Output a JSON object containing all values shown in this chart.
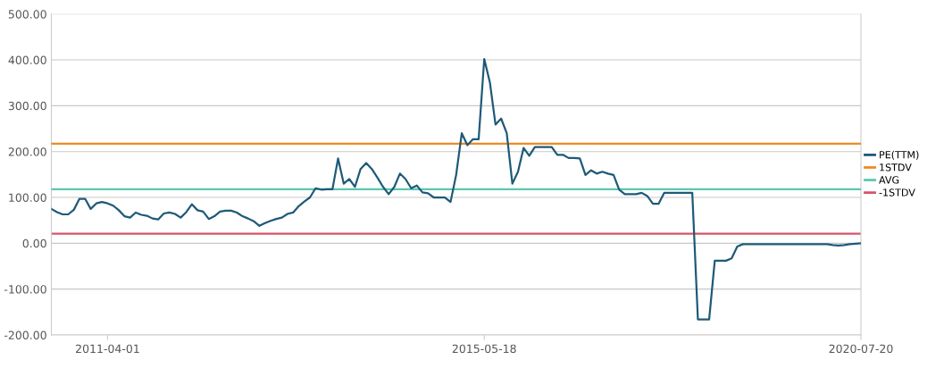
{
  "chart_data": {
    "type": "line",
    "categories": [
      null,
      null,
      null,
      null,
      null,
      null,
      null,
      null,
      null,
      null,
      "2011-04-01",
      null,
      null,
      null,
      null,
      null,
      null,
      null,
      null,
      null,
      null,
      null,
      null,
      null,
      null,
      null,
      null,
      null,
      null,
      null,
      null,
      null,
      null,
      null,
      null,
      null,
      null,
      null,
      null,
      null,
      null,
      null,
      null,
      null,
      null,
      null,
      null,
      null,
      null,
      null,
      null,
      null,
      null,
      null,
      null,
      null,
      null,
      null,
      null,
      null,
      null,
      null,
      null,
      null,
      null,
      null,
      null,
      null,
      null,
      null,
      null,
      null,
      null,
      null,
      null,
      null,
      null,
      "2015-05-18",
      null,
      null,
      null,
      null,
      null,
      null,
      null,
      null,
      null,
      null,
      null,
      null,
      null,
      null,
      null,
      null,
      null,
      null,
      null,
      null,
      null,
      null,
      null,
      null,
      null,
      null,
      null,
      null,
      null,
      null,
      null,
      null,
      null,
      null,
      null,
      null,
      null,
      null,
      null,
      null,
      null,
      null,
      null,
      null,
      null,
      null,
      null,
      null,
      null,
      null,
      null,
      null,
      null,
      null,
      null,
      null,
      null,
      null,
      null,
      null,
      null,
      null,
      null,
      null,
      null,
      null,
      "2020-07-20"
    ],
    "series": [
      {
        "name": "PE(TTM)",
        "color": "#1e5a78",
        "values": [
          75,
          68,
          63,
          63,
          73,
          97,
          97,
          75,
          87,
          90,
          87,
          82,
          72,
          59,
          56,
          67,
          62,
          60,
          54,
          52,
          65,
          67,
          64,
          56,
          68,
          85,
          72,
          69,
          53,
          59,
          69,
          71,
          71,
          67,
          59,
          54,
          48,
          38,
          44,
          49,
          53,
          56,
          64,
          67,
          81,
          91,
          100,
          120,
          117,
          118,
          118,
          185,
          130,
          140,
          123,
          162,
          175,
          162,
          143,
          123,
          107,
          123,
          152,
          140,
          120,
          126,
          111,
          109,
          100,
          100,
          100,
          90,
          149,
          240,
          214,
          227,
          227,
          402,
          351,
          259,
          272,
          240,
          130,
          156,
          208,
          191,
          210,
          210,
          210,
          210,
          193,
          193,
          186,
          186,
          185,
          149,
          159,
          152,
          156,
          152,
          149,
          117,
          107,
          107,
          107,
          110,
          103,
          86,
          86,
          110,
          110,
          110,
          110,
          110,
          110,
          -166,
          -166,
          -166,
          -38,
          -38,
          -38,
          -33,
          -7,
          -2,
          -2,
          -2,
          -2,
          -2,
          -2,
          -2,
          -2,
          -2,
          -2,
          -2,
          -2,
          -2,
          -2,
          -2,
          -2,
          -4,
          -5,
          -4,
          -2,
          -1,
          0
        ]
      },
      {
        "name": "1STDV",
        "color": "#f08a24",
        "values": [
          217,
          217,
          217,
          217,
          217,
          217,
          217,
          217,
          217,
          217,
          217,
          217,
          217,
          217,
          217,
          217,
          217,
          217,
          217,
          217,
          217,
          217,
          217,
          217,
          217,
          217,
          217,
          217,
          217,
          217,
          217,
          217,
          217,
          217,
          217,
          217,
          217,
          217,
          217,
          217,
          217,
          217,
          217,
          217,
          217,
          217,
          217,
          217,
          217,
          217,
          217,
          217,
          217,
          217,
          217,
          217,
          217,
          217,
          217,
          217,
          217,
          217,
          217,
          217,
          217,
          217,
          217,
          217,
          217,
          217,
          217,
          217,
          217,
          217,
          217,
          217,
          217,
          217,
          217,
          217,
          217,
          217,
          217,
          217,
          217,
          217,
          217,
          217,
          217,
          217,
          217,
          217,
          217,
          217,
          217,
          217,
          217,
          217,
          217,
          217,
          217,
          217,
          217,
          217,
          217,
          217,
          217,
          217,
          217,
          217,
          217,
          217,
          217,
          217,
          217,
          217,
          217,
          217,
          217,
          217,
          217,
          217,
          217,
          217,
          217,
          217,
          217,
          217,
          217,
          217,
          217,
          217,
          217,
          217,
          217,
          217,
          217,
          217,
          217,
          217,
          217,
          217,
          217,
          217,
          217
        ]
      },
      {
        "name": "AVG",
        "color": "#5cc8b0",
        "values": [
          118,
          118,
          118,
          118,
          118,
          118,
          118,
          118,
          118,
          118,
          118,
          118,
          118,
          118,
          118,
          118,
          118,
          118,
          118,
          118,
          118,
          118,
          118,
          118,
          118,
          118,
          118,
          118,
          118,
          118,
          118,
          118,
          118,
          118,
          118,
          118,
          118,
          118,
          118,
          118,
          118,
          118,
          118,
          118,
          118,
          118,
          118,
          118,
          118,
          118,
          118,
          118,
          118,
          118,
          118,
          118,
          118,
          118,
          118,
          118,
          118,
          118,
          118,
          118,
          118,
          118,
          118,
          118,
          118,
          118,
          118,
          118,
          118,
          118,
          118,
          118,
          118,
          118,
          118,
          118,
          118,
          118,
          118,
          118,
          118,
          118,
          118,
          118,
          118,
          118,
          118,
          118,
          118,
          118,
          118,
          118,
          118,
          118,
          118,
          118,
          118,
          118,
          118,
          118,
          118,
          118,
          118,
          118,
          118,
          118,
          118,
          118,
          118,
          118,
          118,
          118,
          118,
          118,
          118,
          118,
          118,
          118,
          118,
          118,
          118,
          118,
          118,
          118,
          118,
          118,
          118,
          118,
          118,
          118,
          118,
          118,
          118,
          118,
          118,
          118,
          118,
          118,
          118,
          118,
          118
        ]
      },
      {
        "name": "-1STDV",
        "color": "#d6546a",
        "values": [
          21,
          21,
          21,
          21,
          21,
          21,
          21,
          21,
          21,
          21,
          21,
          21,
          21,
          21,
          21,
          21,
          21,
          21,
          21,
          21,
          21,
          21,
          21,
          21,
          21,
          21,
          21,
          21,
          21,
          21,
          21,
          21,
          21,
          21,
          21,
          21,
          21,
          21,
          21,
          21,
          21,
          21,
          21,
          21,
          21,
          21,
          21,
          21,
          21,
          21,
          21,
          21,
          21,
          21,
          21,
          21,
          21,
          21,
          21,
          21,
          21,
          21,
          21,
          21,
          21,
          21,
          21,
          21,
          21,
          21,
          21,
          21,
          21,
          21,
          21,
          21,
          21,
          21,
          21,
          21,
          21,
          21,
          21,
          21,
          21,
          21,
          21,
          21,
          21,
          21,
          21,
          21,
          21,
          21,
          21,
          21,
          21,
          21,
          21,
          21,
          21,
          21,
          21,
          21,
          21,
          21,
          21,
          21,
          21,
          21,
          21,
          21,
          21,
          21,
          21,
          21,
          21,
          21,
          21,
          21,
          21,
          21,
          21,
          21,
          21,
          21,
          21,
          21,
          21,
          21,
          21,
          21,
          21,
          21,
          21,
          21,
          21,
          21,
          21,
          21,
          21,
          21,
          21,
          21,
          21
        ]
      }
    ],
    "ylim": [
      -200,
      500
    ],
    "yticks": [
      {
        "value": -200,
        "label": "-200.00"
      },
      {
        "value": -100,
        "label": "-100.00"
      },
      {
        "value": 0,
        "label": "0.00"
      },
      {
        "value": 100,
        "label": "100.00"
      },
      {
        "value": 200,
        "label": "200.00"
      },
      {
        "value": 300,
        "label": "300.00"
      },
      {
        "value": 400,
        "label": "400.00"
      },
      {
        "value": 500,
        "label": "500.00"
      }
    ],
    "grid": "y",
    "legend": "right",
    "marker": "none",
    "line_style": "solid"
  }
}
